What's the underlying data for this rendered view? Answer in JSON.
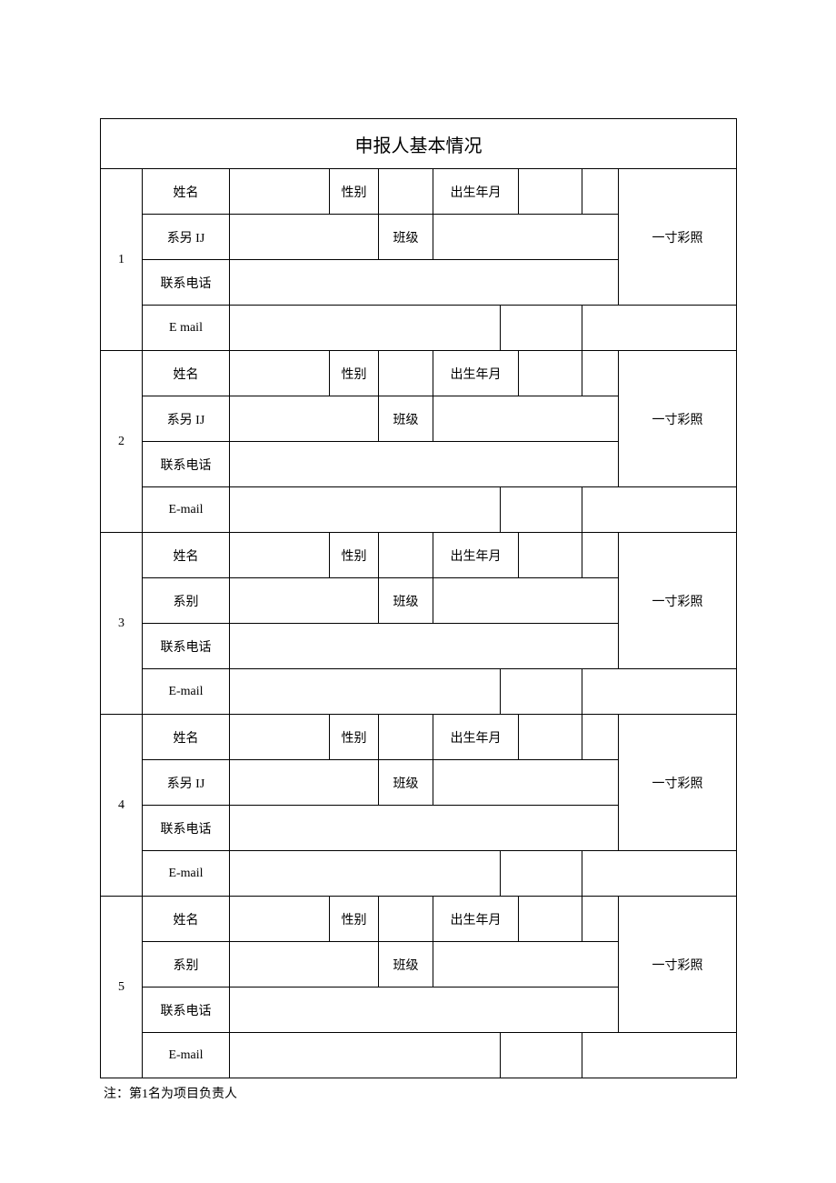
{
  "table": {
    "title": "申报人基本情况",
    "note": "注：第1名为项目负责人",
    "columns": {
      "col1_width": 46,
      "col2_width": 96,
      "col3_width": 110,
      "col4_width": 54,
      "col5_width": 40,
      "col6_width": 20,
      "col7_width": 74,
      "col8_width": 20,
      "col9_width": 70,
      "col10_width": 40,
      "col11_width": 130
    },
    "labels": {
      "name": "姓名",
      "gender": "性别",
      "birth": "出生年月",
      "dept_ij": "系另 IJ",
      "dept": "系别",
      "class": "班级",
      "phone": "联系电话",
      "email_hyphen": "E-mail",
      "email_space": "E mail",
      "photo": "一寸彩照"
    },
    "applicants": [
      {
        "index": "1",
        "dept_key": "dept_ij",
        "email_key": "email_space",
        "name": "",
        "gender": "",
        "birth": "",
        "dept": "",
        "class": "",
        "phone": "",
        "email": ""
      },
      {
        "index": "2",
        "dept_key": "dept_ij",
        "email_key": "email_hyphen",
        "name": "",
        "gender": "",
        "birth": "",
        "dept": "",
        "class": "",
        "phone": "",
        "email": ""
      },
      {
        "index": "3",
        "dept_key": "dept",
        "email_key": "email_hyphen",
        "name": "",
        "gender": "",
        "birth": "",
        "dept": "",
        "class": "",
        "phone": "",
        "email": ""
      },
      {
        "index": "4",
        "dept_key": "dept_ij",
        "email_key": "email_hyphen",
        "name": "",
        "gender": "",
        "birth": "",
        "dept": "",
        "class": "",
        "phone": "",
        "email": ""
      },
      {
        "index": "5",
        "dept_key": "dept",
        "email_key": "email_hyphen",
        "name": "",
        "gender": "",
        "birth": "",
        "dept": "",
        "class": "",
        "phone": "",
        "email": ""
      }
    ]
  }
}
